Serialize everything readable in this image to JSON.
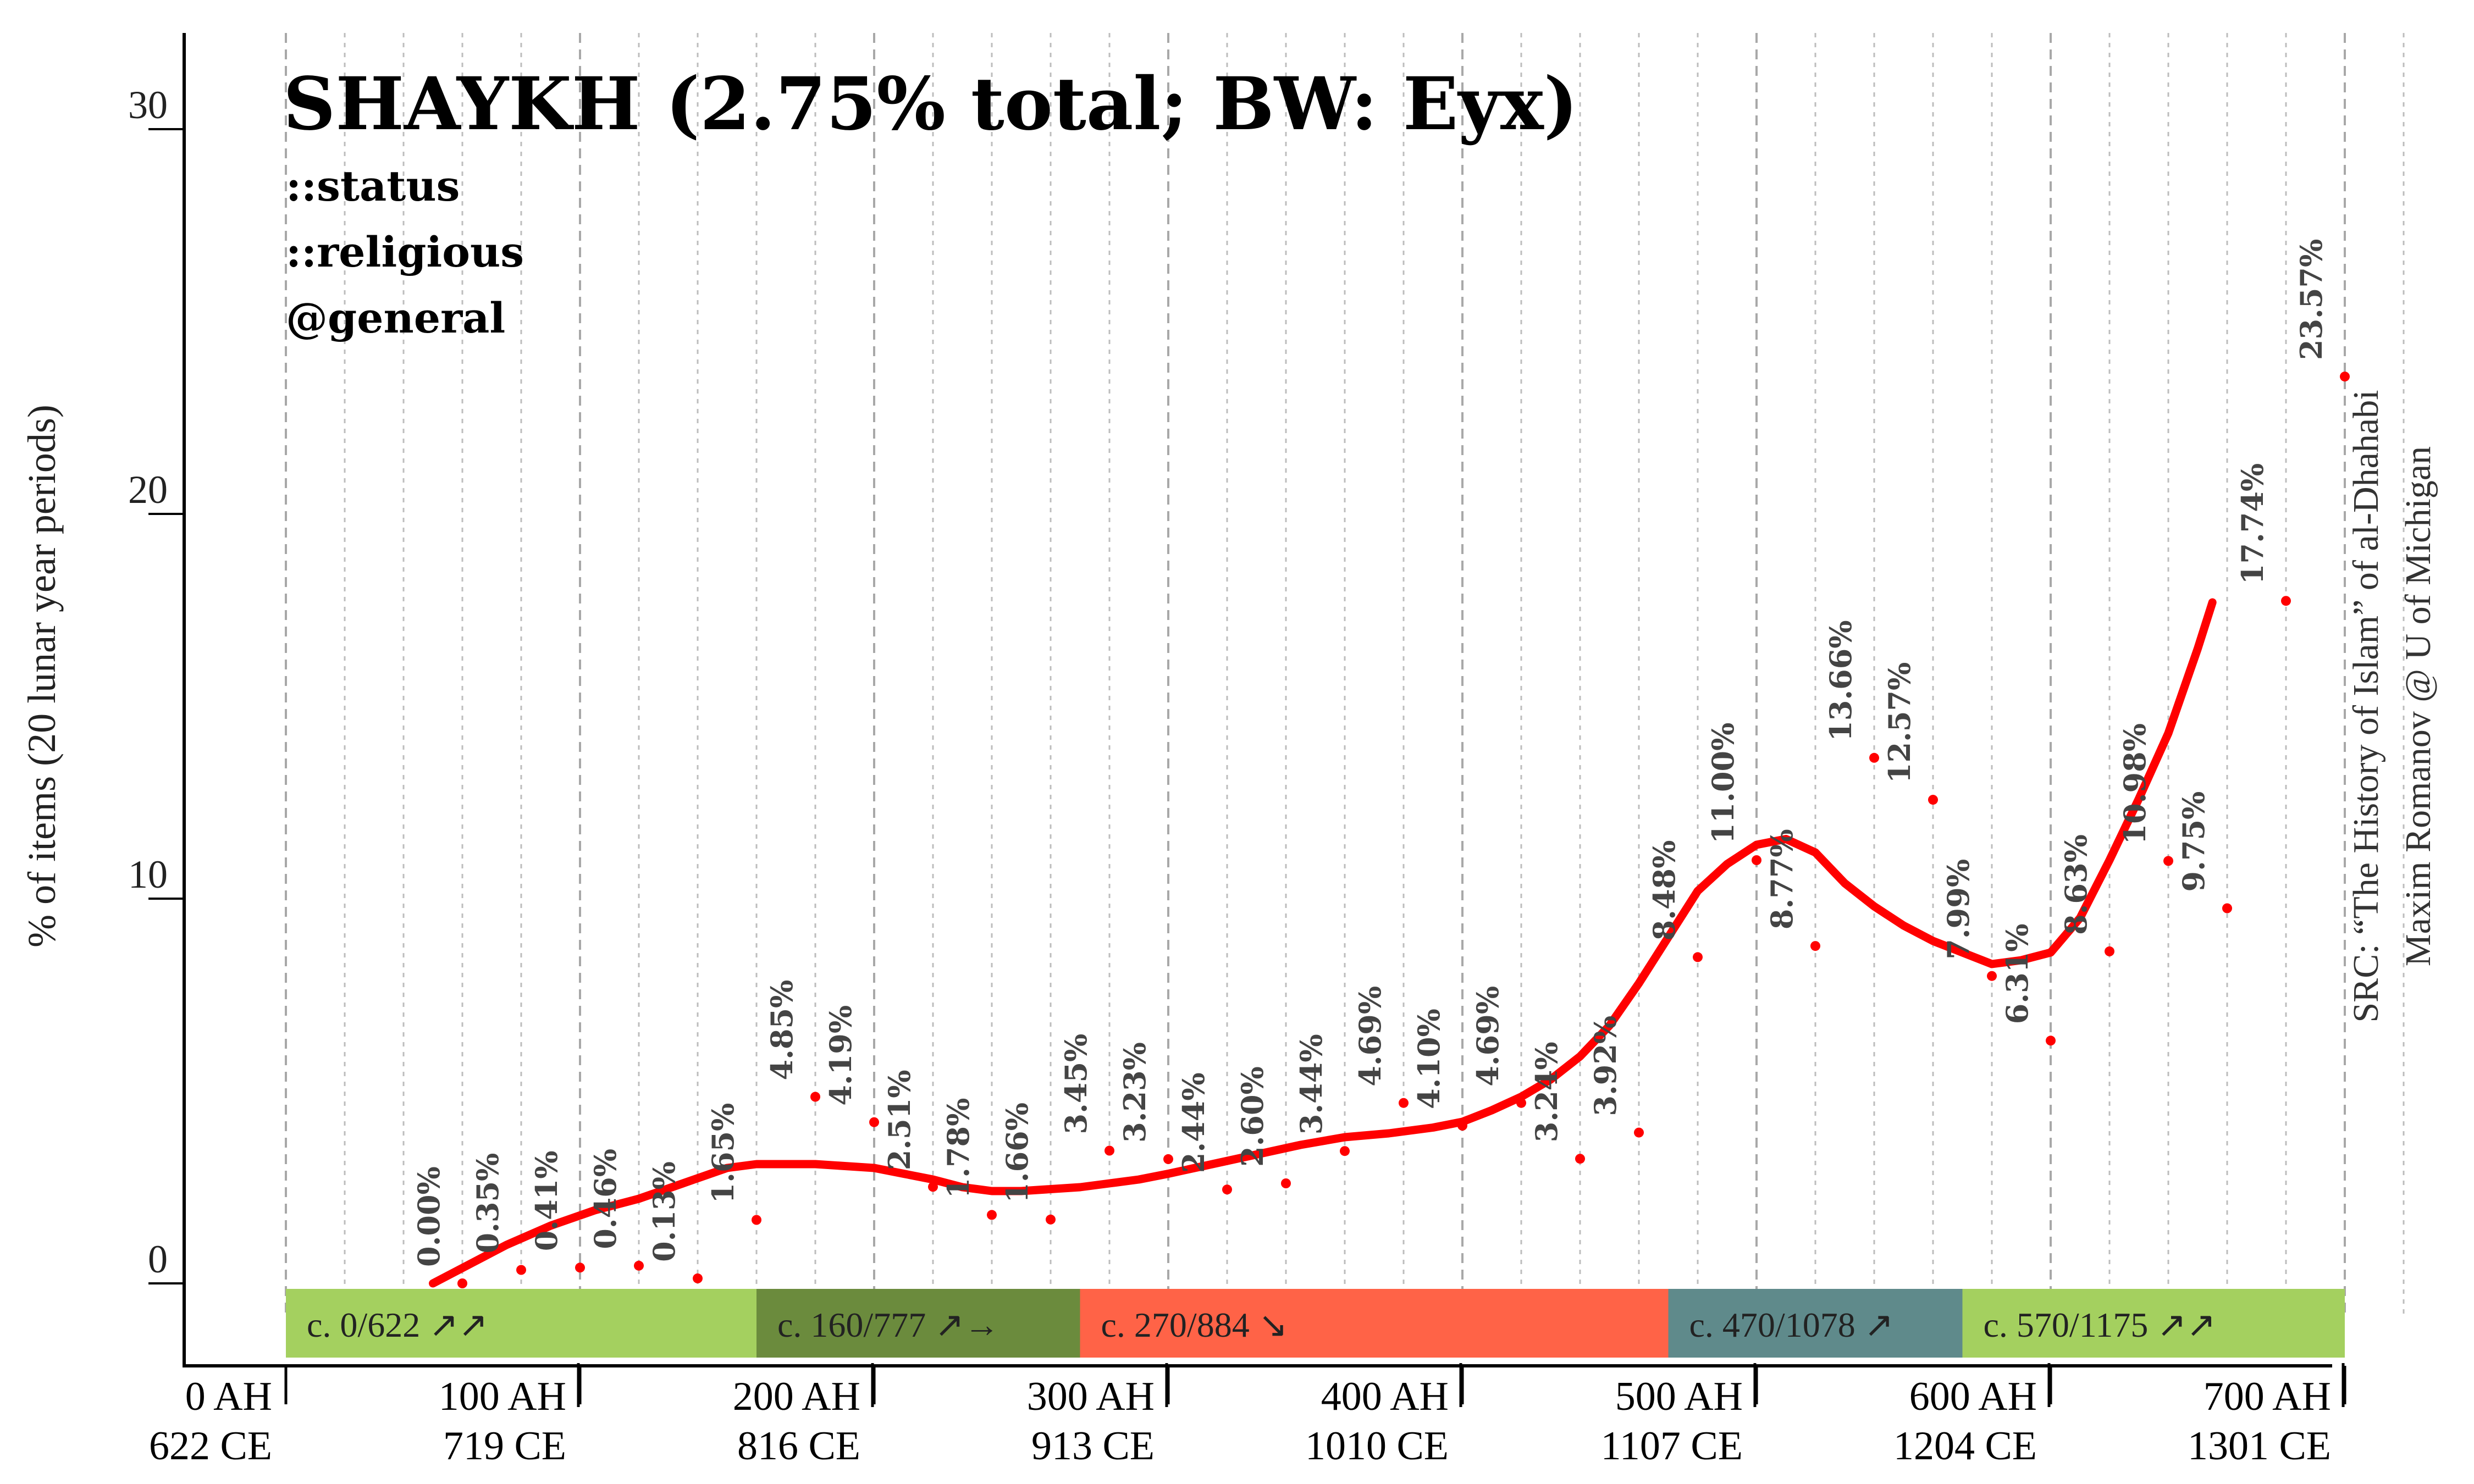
{
  "chart_data": {
    "type": "line",
    "title": "SHAYKH (2.75% total; BW: Eyx)",
    "tags": [
      "::status",
      "::religious",
      "@general"
    ],
    "ylabel": "% of items (20 lunar year periods)",
    "ylim": [
      -2,
      32
    ],
    "yticks": [
      0,
      10,
      20,
      30
    ],
    "xlim": [
      0,
      720
    ],
    "x_ticks": [
      {
        "x": 0,
        "ah": "0 AH",
        "ce": "622 CE"
      },
      {
        "x": 100,
        "ah": "100 AH",
        "ce": "719 CE"
      },
      {
        "x": 200,
        "ah": "200 AH",
        "ce": "816 CE"
      },
      {
        "x": 300,
        "ah": "300 AH",
        "ce": "913 CE"
      },
      {
        "x": 400,
        "ah": "400 AH",
        "ce": "1010 CE"
      },
      {
        "x": 500,
        "ah": "500 AH",
        "ce": "1107 CE"
      },
      {
        "x": 600,
        "ah": "600 AH",
        "ce": "1204 CE"
      },
      {
        "x": 700,
        "ah": "700 AH",
        "ce": "1301 CE"
      }
    ],
    "points": [
      {
        "x": 60,
        "y": 0.0,
        "label": "0.00%"
      },
      {
        "x": 80,
        "y": 0.35,
        "label": "0.35%"
      },
      {
        "x": 100,
        "y": 0.41,
        "label": "0.41%"
      },
      {
        "x": 120,
        "y": 0.46,
        "label": "0.46%"
      },
      {
        "x": 140,
        "y": 0.13,
        "label": "0.13%"
      },
      {
        "x": 160,
        "y": 1.65,
        "label": "1.65%"
      },
      {
        "x": 180,
        "y": 4.85,
        "label": "4.85%"
      },
      {
        "x": 200,
        "y": 4.19,
        "label": "4.19%"
      },
      {
        "x": 220,
        "y": 2.51,
        "label": "2.51%"
      },
      {
        "x": 240,
        "y": 1.78,
        "label": "1.78%"
      },
      {
        "x": 260,
        "y": 1.66,
        "label": "1.66%"
      },
      {
        "x": 280,
        "y": 3.45,
        "label": "3.45%"
      },
      {
        "x": 300,
        "y": 3.23,
        "label": "3.23%"
      },
      {
        "x": 320,
        "y": 2.44,
        "label": "2.44%"
      },
      {
        "x": 340,
        "y": 2.6,
        "label": "2.60%"
      },
      {
        "x": 360,
        "y": 3.44,
        "label": "3.44%"
      },
      {
        "x": 380,
        "y": 4.69,
        "label": "4.69%"
      },
      {
        "x": 400,
        "y": 4.1,
        "label": "4.10%"
      },
      {
        "x": 420,
        "y": 4.69,
        "label": "4.69%"
      },
      {
        "x": 440,
        "y": 3.24,
        "label": "3.24%"
      },
      {
        "x": 460,
        "y": 3.92,
        "label": "3.92%"
      },
      {
        "x": 480,
        "y": 8.48,
        "label": "8.48%"
      },
      {
        "x": 500,
        "y": 11.0,
        "label": "11.00%"
      },
      {
        "x": 520,
        "y": 8.77,
        "label": "8.77%"
      },
      {
        "x": 540,
        "y": 13.66,
        "label": "13.66%"
      },
      {
        "x": 560,
        "y": 12.57,
        "label": "12.57%"
      },
      {
        "x": 580,
        "y": 7.99,
        "label": "7.99%"
      },
      {
        "x": 600,
        "y": 6.31,
        "label": "6.31%"
      },
      {
        "x": 620,
        "y": 8.63,
        "label": "8.63%"
      },
      {
        "x": 640,
        "y": 10.98,
        "label": "10.98%"
      },
      {
        "x": 660,
        "y": 9.75,
        "label": "9.75%"
      },
      {
        "x": 680,
        "y": 17.74,
        "label": "17.74%"
      },
      {
        "x": 700,
        "y": 23.57,
        "label": "23.57%"
      }
    ],
    "trend": {
      "x": [
        50,
        60,
        75,
        90,
        105,
        120,
        135,
        150,
        160,
        170,
        180,
        190,
        200,
        210,
        220,
        230,
        240,
        250,
        260,
        270,
        280,
        290,
        300,
        315,
        330,
        345,
        360,
        375,
        390,
        400,
        410,
        420,
        430,
        440,
        450,
        460,
        470,
        480,
        490,
        500,
        510,
        520,
        530,
        540,
        550,
        560,
        570,
        580,
        590,
        600,
        610,
        620,
        630,
        640,
        650,
        655
      ],
      "y": [
        0.0,
        0.4,
        1.0,
        1.5,
        1.9,
        2.2,
        2.6,
        3.0,
        3.1,
        3.1,
        3.1,
        3.05,
        3.0,
        2.85,
        2.7,
        2.5,
        2.4,
        2.4,
        2.45,
        2.5,
        2.6,
        2.7,
        2.85,
        3.1,
        3.35,
        3.6,
        3.8,
        3.9,
        4.05,
        4.2,
        4.5,
        4.85,
        5.3,
        5.9,
        6.7,
        7.8,
        9.0,
        10.2,
        10.9,
        11.4,
        11.55,
        11.2,
        10.4,
        9.8,
        9.3,
        8.9,
        8.6,
        8.3,
        8.4,
        8.6,
        9.5,
        11.0,
        12.6,
        14.3,
        16.5,
        17.7
      ]
    },
    "periods": [
      {
        "label": "c. 0/622 ↗↗",
        "from": 0,
        "to": 160,
        "color": "#a4d05f"
      },
      {
        "label": "c. 160/777 ↗→",
        "from": 160,
        "to": 270,
        "color": "#6b8b3d"
      },
      {
        "label": "c. 270/884 ↘",
        "from": 270,
        "to": 470,
        "color": "#ff6347"
      },
      {
        "label": "c. 470/1078 ↗",
        "from": 470,
        "to": 570,
        "color": "#5f8a8b"
      },
      {
        "label": "c. 570/1175 ↗↗",
        "from": 570,
        "to": 700,
        "color": "#a4d05f"
      }
    ],
    "source": [
      "SRC: “The History of Islam” of al-Dhahabi",
      "Maxim Romanov @ U of Michigan"
    ],
    "colors": {
      "trend": "#ff0000",
      "points": "#ff0000",
      "grid": "#bdbdbd"
    }
  }
}
